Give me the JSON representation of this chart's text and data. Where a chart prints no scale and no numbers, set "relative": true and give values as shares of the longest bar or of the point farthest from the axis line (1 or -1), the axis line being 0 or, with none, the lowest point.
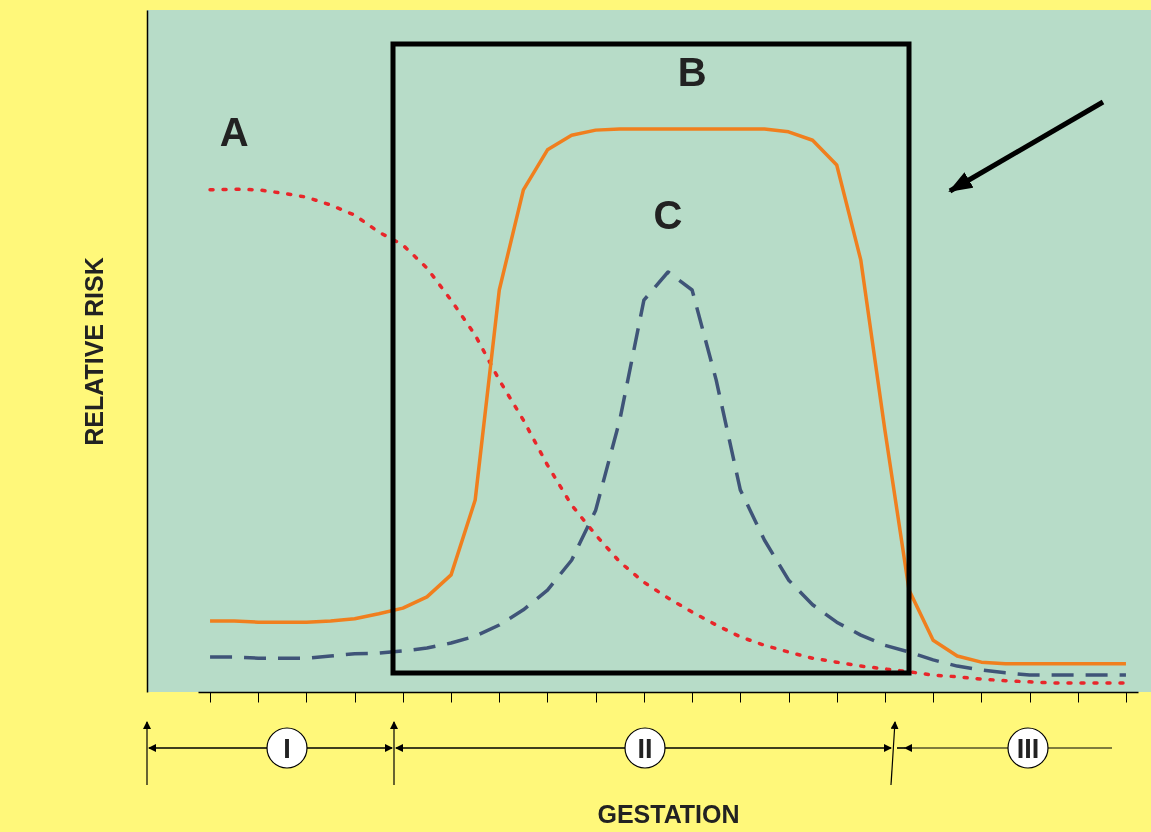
{
  "chart_data": {
    "type": "line",
    "relative": true,
    "xlabel": "GESTATION",
    "ylabel": "RELATIVE RISK",
    "categories": [
      null,
      null,
      null,
      null,
      null,
      null,
      null,
      null,
      null,
      null,
      null,
      null,
      null,
      null,
      null,
      null,
      null,
      null,
      null,
      null,
      null,
      null,
      null,
      null,
      null,
      null,
      null,
      null,
      null,
      null,
      null,
      null,
      null,
      null,
      null,
      null,
      null,
      null,
      null
    ],
    "series": [
      {
        "name": "A",
        "color": "#e8262a",
        "line_style": "dotted",
        "values": [
          0.892,
          0.893,
          0.892,
          0.886,
          0.879,
          0.865,
          0.847,
          0.817,
          0.794,
          0.753,
          0.696,
          0.634,
          0.554,
          0.483,
          0.403,
          0.332,
          0.279,
          0.231,
          0.195,
          0.167,
          0.142,
          0.119,
          0.098,
          0.083,
          0.071,
          0.06,
          0.053,
          0.046,
          0.041,
          0.036,
          0.03,
          0.027,
          0.023,
          0.02,
          0.018,
          0.016,
          0.016,
          0.016,
          0.016
        ]
      },
      {
        "name": "B",
        "color": "#f07f1e",
        "line_style": "solid",
        "values": [
          0.126,
          0.126,
          0.124,
          0.124,
          0.124,
          0.126,
          0.13,
          0.139,
          0.149,
          0.169,
          0.208,
          0.341,
          0.714,
          0.892,
          0.963,
          0.989,
          0.998,
          1,
          1,
          1,
          1,
          1,
          1,
          1,
          0.995,
          0.98,
          0.936,
          0.767,
          0.465,
          0.181,
          0.092,
          0.064,
          0.053,
          0.05,
          0.05,
          0.05,
          0.05,
          0.05,
          0.05
        ]
      },
      {
        "name": "C",
        "color": "#3f5478",
        "line_style": "dashed",
        "values": [
          0.062,
          0.062,
          0.06,
          0.06,
          0.06,
          0.064,
          0.068,
          0.069,
          0.073,
          0.078,
          0.087,
          0.099,
          0.119,
          0.146,
          0.181,
          0.234,
          0.323,
          0.483,
          0.696,
          0.746,
          0.714,
          0.554,
          0.359,
          0.27,
          0.199,
          0.155,
          0.124,
          0.101,
          0.083,
          0.071,
          0.057,
          0.046,
          0.039,
          0.034,
          0.03,
          0.03,
          0.03,
          0.03,
          0.03
        ]
      }
    ],
    "annotations": [
      "I",
      "II",
      "III"
    ]
  }
}
